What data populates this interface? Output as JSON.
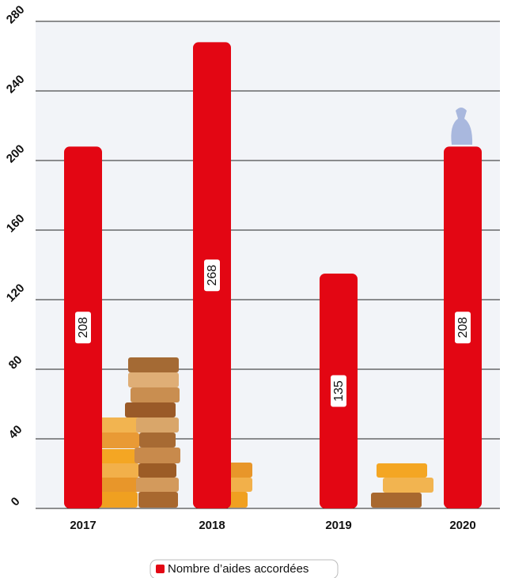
{
  "chart_data": {
    "type": "bar",
    "categories": [
      "2017",
      "2018",
      "2019",
      "2020"
    ],
    "series": [
      {
        "name": "Nombre d’aides accordées",
        "color": "#e30613",
        "values": [
          208,
          268,
          135,
          208
        ]
      }
    ],
    "ylim": [
      0,
      280
    ],
    "yticks": [
      0,
      40,
      80,
      120,
      160,
      200,
      240,
      280
    ],
    "grid": true,
    "legend": "bottom"
  }
}
